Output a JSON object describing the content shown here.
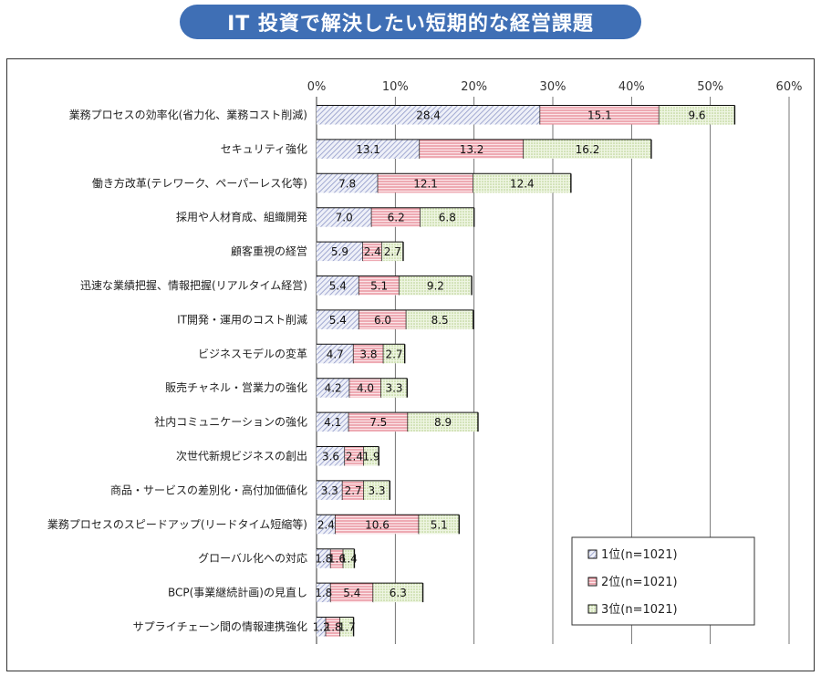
{
  "title": "IT 投資で解決したい短期的な経営課題",
  "chart_data": {
    "type": "bar",
    "stacked": true,
    "orientation": "horizontal",
    "xlim": [
      0,
      60
    ],
    "ticks": [
      "0%",
      "10%",
      "20%",
      "30%",
      "40%",
      "50%",
      "60%"
    ],
    "grid": true,
    "legend_position": "bottom-right",
    "categories": [
      "業務プロセスの効率化(省力化、業務コスト削減)",
      "セキュリティ強化",
      "働き方改革(テレワーク、ペーパーレス化等)",
      "採用や人材育成、組織開発",
      "顧客重視の経営",
      "迅速な業績把握、情報把握(リアルタイム経営)",
      "IT開発・運用のコスト削減",
      "ビジネスモデルの変革",
      "販売チャネル・営業力の強化",
      "社内コミュニケーションの強化",
      "次世代新規ビジネスの創出",
      "商品・サービスの差別化・高付加価値化",
      "業務プロセスのスピードアップ(リードタイム短縮等)",
      "グローバル化への対応",
      "BCP(事業継続計画)の見直し",
      "サプライチェーン間の情報連携強化"
    ],
    "series": [
      {
        "name": "1位(n=1021)",
        "pattern": "diagonal",
        "color": "#8f98c8",
        "values": [
          28.4,
          13.1,
          7.8,
          7.0,
          5.9,
          5.4,
          5.4,
          4.7,
          4.2,
          4.1,
          3.6,
          3.3,
          2.4,
          1.8,
          1.8,
          1.2
        ]
      },
      {
        "name": "2位(n=1021)",
        "pattern": "horizontal",
        "color": "#e88a96",
        "values": [
          15.1,
          13.2,
          12.1,
          6.2,
          2.4,
          5.1,
          6.0,
          3.8,
          4.0,
          7.5,
          2.4,
          2.7,
          10.6,
          1.6,
          5.4,
          1.8
        ]
      },
      {
        "name": "3位(n=1021)",
        "pattern": "dots",
        "color": "#b5cf8a",
        "values": [
          9.6,
          16.2,
          12.4,
          6.8,
          2.7,
          9.2,
          8.5,
          2.7,
          3.3,
          8.9,
          1.9,
          3.3,
          5.1,
          1.4,
          6.3,
          1.7
        ]
      }
    ]
  }
}
